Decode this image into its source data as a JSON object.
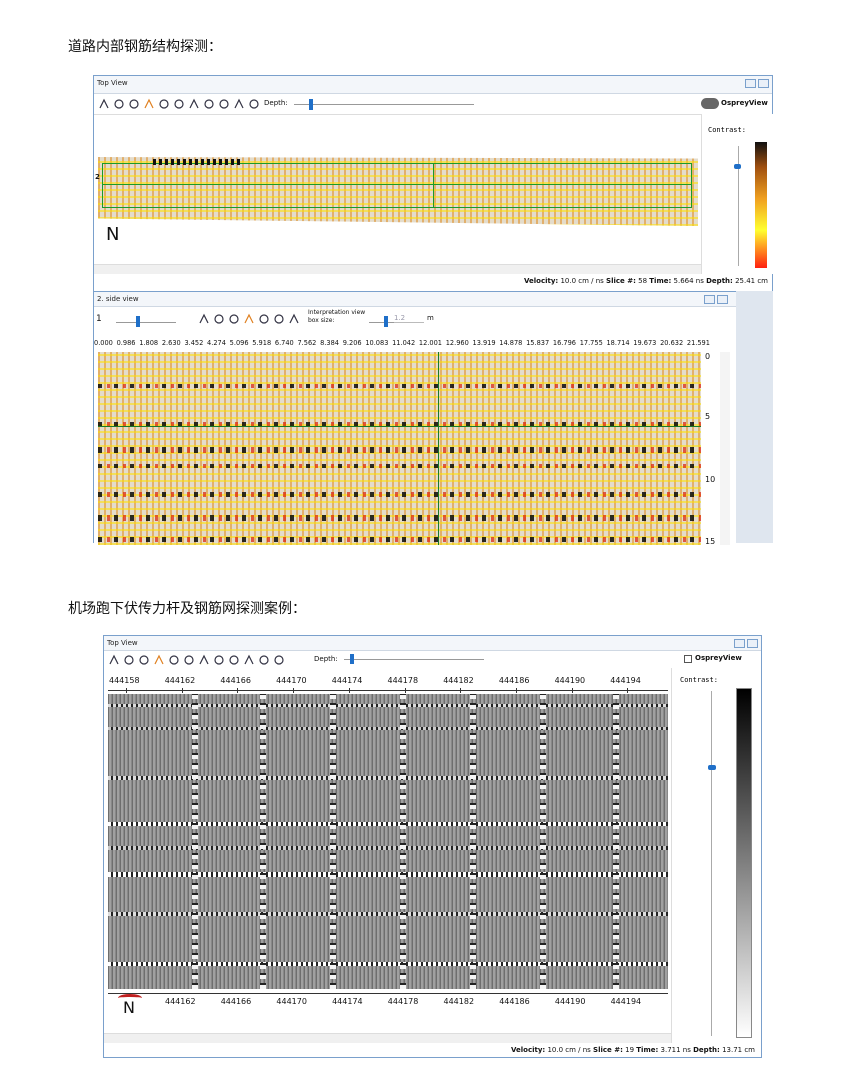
{
  "doc": {
    "sections": [
      {
        "heading": "道路内部钢筋结构探测：",
        "top_view": {
          "title": "Top View",
          "depth_label": "Depth:",
          "brand": "OspreyView",
          "contrast_label": "Contrast:",
          "marker": "2",
          "north": "N",
          "status": {
            "velocity_label": "Velocity:",
            "velocity": "10.0 cm / ns",
            "slice_label": "Slice #:",
            "slice": "58",
            "time_label": "Time:",
            "time": "5.664 ns",
            "depth_label": "Depth:",
            "depth": "25.41 cm"
          }
        },
        "side_view": {
          "title": "2. side view",
          "index": "1",
          "box_label": "Interpretation view box size:",
          "box_value": "1.2",
          "box_unit": "m",
          "distance_ticks": [
            "0.000",
            "0.986",
            "1.808",
            "2.630",
            "3.452",
            "4.274",
            "5.096",
            "5.918",
            "6.740",
            "7.562",
            "8.384",
            "9.206",
            "10.083",
            "11.042",
            "12.001",
            "12.960",
            "13.919",
            "14.878",
            "15.837",
            "16.796",
            "17.755",
            "18.714",
            "19.673",
            "20.632",
            "21.591"
          ],
          "depth_ticks": [
            "0",
            "5",
            "10",
            "15"
          ]
        }
      },
      {
        "heading": "机场跑下伏传力杆及钢筋网探测案例：",
        "top_view": {
          "title": "Top View",
          "depth_label": "Depth:",
          "brand": "OspreyView",
          "contrast_label": "Contrast:",
          "north": "N",
          "top_ticks": [
            "444158",
            "444162",
            "444166",
            "444170",
            "444174",
            "444178",
            "444182",
            "444186",
            "444190",
            "444194"
          ],
          "bottom_ticks": [
            "444162",
            "444166",
            "444170",
            "444174",
            "444178",
            "444182",
            "444186",
            "444190",
            "444194"
          ],
          "status": {
            "velocity_label": "Velocity:",
            "velocity": "10.0 cm / ns",
            "slice_label": "Slice #:",
            "slice": "19",
            "time_label": "Time:",
            "time": "3.711 ns",
            "depth_label": "Depth:",
            "depth": "13.71 cm"
          }
        }
      }
    ]
  }
}
